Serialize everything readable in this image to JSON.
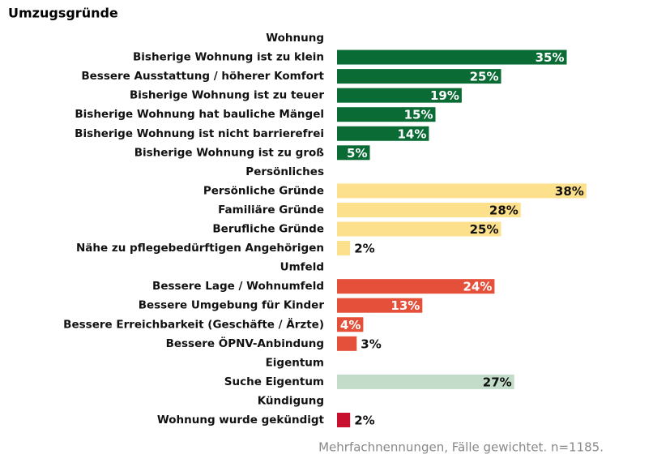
{
  "chart_data": {
    "type": "bar",
    "orientation": "horizontal",
    "title": "Umzugsgründe",
    "categories": [
      "Wohnung",
      "Bisherige Wohnung ist zu klein",
      "Bessere Ausstattung / höherer Komfort",
      "Bisherige Wohnung ist zu teuer",
      "Bisherige Wohnung hat bauliche Mängel",
      "Bisherige Wohnung ist nicht barrierefrei",
      "Bisherige Wohnung ist zu groß",
      "Persönliches",
      "Persönliche Gründe",
      "Familiäre Gründe",
      "Berufliche Gründe",
      "Nähe zu pflegebedürftigen Angehörigen",
      "Umfeld",
      "Bessere Lage / Wohnumfeld",
      "Bessere Umgebung für Kinder",
      "Bessere Erreichbarkeit (Geschäfte / Ärzte)",
      "Bessere ÖPNV-Anbindung",
      "Eigentum",
      "Suche Eigentum",
      "Kündigung",
      "Wohnung wurde gekündigt"
    ],
    "values": [
      null,
      35,
      25,
      19,
      15,
      14,
      5,
      null,
      38,
      28,
      25,
      2,
      null,
      24,
      13,
      4,
      3,
      null,
      27,
      null,
      2
    ],
    "value_labels": [
      null,
      "35%",
      "25%",
      "19%",
      "15%",
      "14%",
      "5%",
      null,
      "38%",
      "28%",
      "25%",
      "2%",
      null,
      "24%",
      "13%",
      "4%",
      "3%",
      null,
      "27%",
      null,
      "2%"
    ],
    "colors": [
      null,
      "#0b6b35",
      "#0b6b35",
      "#0b6b35",
      "#0b6b35",
      "#0b6b35",
      "#0b6b35",
      null,
      "#fde08b",
      "#fde08b",
      "#fde08b",
      "#fde08b",
      null,
      "#e4503a",
      "#e4503a",
      "#e4503a",
      "#e4503a",
      null,
      "#c3dcc9",
      null,
      "#c8102e"
    ],
    "note": "Mehrfachnennungen,  Fälle gewichtet. n=1185."
  }
}
